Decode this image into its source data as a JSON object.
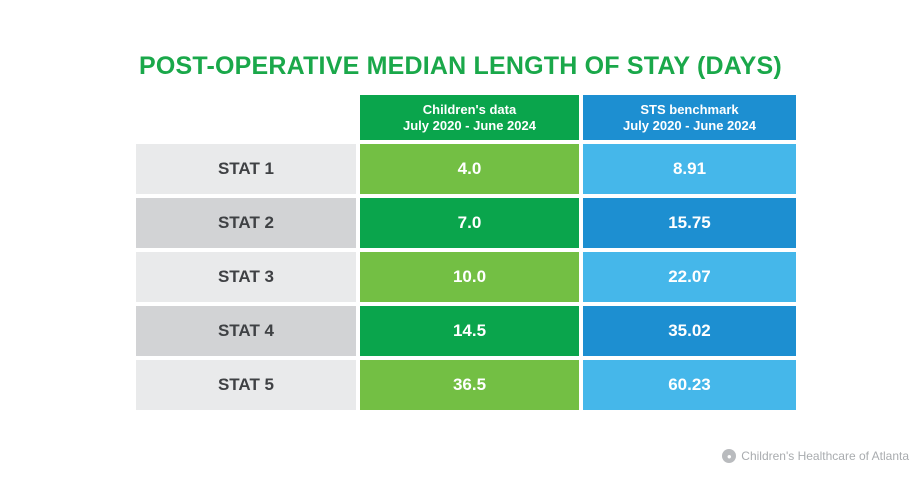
{
  "chart_data": {
    "type": "table",
    "title": "POST-OPERATIVE MEDIAN LENGTH OF STAY (DAYS)",
    "columns": [
      {
        "line1": "Children's data",
        "line2": "July 2020 - June 2024"
      },
      {
        "line1": "STS benchmark",
        "line2": "July 2020 - June 2024"
      }
    ],
    "rows": [
      {
        "label": "STAT 1",
        "childrens": "4.0",
        "sts": "8.91"
      },
      {
        "label": "STAT 2",
        "childrens": "7.0",
        "sts": "15.75"
      },
      {
        "label": "STAT 3",
        "childrens": "10.0",
        "sts": "22.07"
      },
      {
        "label": "STAT 4",
        "childrens": "14.5",
        "sts": "35.02"
      },
      {
        "label": "STAT 5",
        "childrens": "36.5",
        "sts": "60.23"
      }
    ]
  },
  "colors": {
    "title": "#1aa84a",
    "header_childrens": "#0aa54c",
    "header_sts": "#1d8fd1",
    "label_light": "#e9eaeb",
    "label_dark": "#d2d3d5",
    "childrens_light": "#73bf44",
    "childrens_dark": "#0aa54c",
    "sts_light": "#45b7ea",
    "sts_dark": "#1d8fd1"
  },
  "footer": {
    "text": "Children's Healthcare of Atlanta",
    "logo_icon": "childrens-logo-icon"
  }
}
